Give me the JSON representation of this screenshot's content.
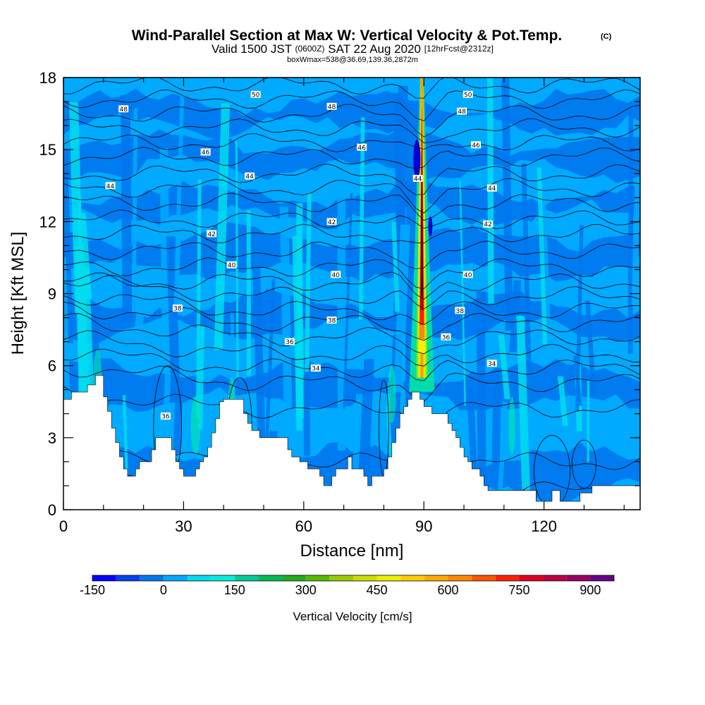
{
  "chart_data": {
    "type": "heatmap",
    "title": "Wind-Parallel Section at Max W: Vertical Velocity & Pot.Temp.",
    "title_mark": "(C)",
    "subtitle": {
      "part1": "Valid 1500 JST",
      "part2": "(0600Z)",
      "part3": "SAT 22 Aug 2020",
      "part4": "[12hrFcst@2312z]"
    },
    "subtitle2": "boxWmax=538@36.69,139.36,2872m",
    "xlabel": "Distance [nm]",
    "ylabel": "Height [Kft MSL]",
    "xlim": [
      0,
      144
    ],
    "ylim": [
      0,
      18
    ],
    "x_ticks": [
      "0",
      "30",
      "60",
      "90",
      "120"
    ],
    "y_ticks": [
      "0",
      "3",
      "6",
      "9",
      "12",
      "15",
      "18"
    ],
    "colorbar": {
      "label": "Vertical Velocity [cm/s]",
      "ticks": [
        "-150",
        "0",
        "150",
        "300",
        "450",
        "600",
        "750",
        "900"
      ],
      "levels": [
        -150,
        -100,
        -50,
        0,
        50,
        100,
        150,
        200,
        250,
        300,
        350,
        400,
        450,
        500,
        550,
        600,
        650,
        700,
        750,
        800,
        850,
        900,
        950
      ],
      "colors": [
        "#0000ff",
        "#0044ee",
        "#0077ee",
        "#00aaff",
        "#00ddee",
        "#00eedd",
        "#00cc99",
        "#00bb55",
        "#22aa22",
        "#55bb00",
        "#99cc00",
        "#ccdd00",
        "#eeee00",
        "#ffcc00",
        "#ffaa00",
        "#ff8800",
        "#ff5500",
        "#ff2200",
        "#dd0022",
        "#bb0044",
        "#990066",
        "#660088"
      ]
    },
    "background_colors": {
      "weak_down": "#0077ee",
      "near_zero": "#00aaff",
      "weak_up": "#00ddee",
      "strong_down": "#0000dd",
      "terrain": "#ffffff"
    },
    "updraft_core": {
      "x": 89.5,
      "y_range": [
        5.5,
        18
      ],
      "peak_colors": [
        "#ffee00",
        "#ff8800",
        "#ff2200",
        "#aa0000",
        "#000000"
      ]
    },
    "terrain": [
      [
        0,
        4.6
      ],
      [
        2,
        4.6
      ],
      [
        2,
        4.9
      ],
      [
        6,
        4.9
      ],
      [
        6,
        5.2
      ],
      [
        8,
        5.2
      ],
      [
        8,
        5.6
      ],
      [
        10,
        5.6
      ],
      [
        10,
        4.7
      ],
      [
        11,
        4.7
      ],
      [
        11,
        4.1
      ],
      [
        12,
        4.1
      ],
      [
        12,
        3.4
      ],
      [
        13,
        3.4
      ],
      [
        13,
        2.8
      ],
      [
        14,
        2.8
      ],
      [
        14,
        2.2
      ],
      [
        15,
        2.2
      ],
      [
        15,
        1.7
      ],
      [
        16,
        1.7
      ],
      [
        16,
        1.4
      ],
      [
        18,
        1.4
      ],
      [
        18,
        1.7
      ],
      [
        19,
        1.7
      ],
      [
        19,
        2.0
      ],
      [
        22,
        2.0
      ],
      [
        22,
        2.5
      ],
      [
        23,
        2.5
      ],
      [
        23,
        3.0
      ],
      [
        27,
        3.0
      ],
      [
        27,
        2.5
      ],
      [
        28,
        2.5
      ],
      [
        28,
        2.0
      ],
      [
        29,
        2.0
      ],
      [
        29,
        1.7
      ],
      [
        30,
        1.7
      ],
      [
        30,
        1.4
      ],
      [
        33,
        1.4
      ],
      [
        33,
        1.7
      ],
      [
        34,
        1.7
      ],
      [
        34,
        2.0
      ],
      [
        35,
        2.0
      ],
      [
        35,
        2.2
      ],
      [
        36,
        2.2
      ],
      [
        36,
        2.6
      ],
      [
        37,
        2.6
      ],
      [
        37,
        3.2
      ],
      [
        38,
        3.2
      ],
      [
        38,
        3.8
      ],
      [
        39,
        3.8
      ],
      [
        39,
        4.5
      ],
      [
        40,
        4.5
      ],
      [
        40,
        4.6
      ],
      [
        45,
        4.6
      ],
      [
        45,
        4.0
      ],
      [
        46,
        4.0
      ],
      [
        46,
        3.6
      ],
      [
        47,
        3.6
      ],
      [
        47,
        3.3
      ],
      [
        49,
        3.3
      ],
      [
        49,
        3.0
      ],
      [
        56,
        3.0
      ],
      [
        56,
        2.5
      ],
      [
        57,
        2.5
      ],
      [
        57,
        2.2
      ],
      [
        59,
        2.2
      ],
      [
        59,
        2.0
      ],
      [
        61,
        2.0
      ],
      [
        61,
        1.7
      ],
      [
        64,
        1.7
      ],
      [
        64,
        1.4
      ],
      [
        65,
        1.4
      ],
      [
        65,
        1.0
      ],
      [
        67,
        1.0
      ],
      [
        67,
        1.4
      ],
      [
        68,
        1.4
      ],
      [
        68,
        1.7
      ],
      [
        71,
        1.7
      ],
      [
        71,
        2.2
      ],
      [
        72,
        2.2
      ],
      [
        72,
        1.7
      ],
      [
        75,
        1.7
      ],
      [
        75,
        1.4
      ],
      [
        76,
        1.4
      ],
      [
        76,
        1.0
      ],
      [
        77,
        1.0
      ],
      [
        77,
        1.4
      ],
      [
        80,
        1.4
      ],
      [
        80,
        1.7
      ],
      [
        81,
        1.7
      ],
      [
        81,
        2.2
      ],
      [
        82,
        2.2
      ],
      [
        82,
        2.8
      ],
      [
        83,
        2.8
      ],
      [
        83,
        3.4
      ],
      [
        84,
        3.4
      ],
      [
        84,
        4.0
      ],
      [
        85,
        4.0
      ],
      [
        85,
        4.3
      ],
      [
        86,
        4.3
      ],
      [
        86,
        4.6
      ],
      [
        87,
        4.6
      ],
      [
        87,
        4.9
      ],
      [
        89,
        4.9
      ],
      [
        89,
        4.6
      ],
      [
        90,
        4.6
      ],
      [
        90,
        4.3
      ],
      [
        92,
        4.3
      ],
      [
        92,
        4.0
      ],
      [
        96,
        4.0
      ],
      [
        96,
        3.6
      ],
      [
        97,
        3.6
      ],
      [
        97,
        3.3
      ],
      [
        98,
        3.3
      ],
      [
        98,
        3.0
      ],
      [
        99,
        3.0
      ],
      [
        99,
        2.6
      ],
      [
        100,
        2.6
      ],
      [
        100,
        2.2
      ],
      [
        101,
        2.2
      ],
      [
        101,
        2.0
      ],
      [
        102,
        2.0
      ],
      [
        102,
        1.7
      ],
      [
        104,
        1.7
      ],
      [
        104,
        1.4
      ],
      [
        105,
        1.4
      ],
      [
        105,
        1.0
      ],
      [
        106,
        1.0
      ],
      [
        106,
        0.8
      ],
      [
        118,
        0.8
      ],
      [
        118,
        0.35
      ],
      [
        122,
        0.35
      ],
      [
        122,
        0.8
      ],
      [
        124,
        0.8
      ],
      [
        124,
        0.35
      ],
      [
        129,
        0.35
      ],
      [
        129,
        0.7
      ],
      [
        132,
        0.7
      ],
      [
        132,
        1.0
      ],
      [
        144,
        1.0
      ]
    ],
    "theta_labels": [
      {
        "x": 48,
        "y": 17.3,
        "text": "50"
      },
      {
        "x": 101,
        "y": 17.3,
        "text": "50"
      },
      {
        "x": 15,
        "y": 16.7,
        "text": "48"
      },
      {
        "x": 67,
        "y": 16.8,
        "text": "48"
      },
      {
        "x": 99.5,
        "y": 16.6,
        "text": "48"
      },
      {
        "x": 35.5,
        "y": 14.9,
        "text": "46"
      },
      {
        "x": 74.5,
        "y": 15.1,
        "text": "46"
      },
      {
        "x": 103,
        "y": 15.2,
        "text": "46"
      },
      {
        "x": 11.7,
        "y": 13.5,
        "text": "44"
      },
      {
        "x": 46.5,
        "y": 13.9,
        "text": "44"
      },
      {
        "x": 88.5,
        "y": 13.8,
        "text": "44"
      },
      {
        "x": 107,
        "y": 13.4,
        "text": "44"
      },
      {
        "x": 37,
        "y": 11.5,
        "text": "42"
      },
      {
        "x": 67,
        "y": 12.0,
        "text": "42"
      },
      {
        "x": 106,
        "y": 11.9,
        "text": "42"
      },
      {
        "x": 42,
        "y": 10.2,
        "text": "40"
      },
      {
        "x": 68,
        "y": 9.8,
        "text": "40"
      },
      {
        "x": 101,
        "y": 9.8,
        "text": "40"
      },
      {
        "x": 28.5,
        "y": 8.4,
        "text": "38"
      },
      {
        "x": 67,
        "y": 7.9,
        "text": "38"
      },
      {
        "x": 99,
        "y": 8.3,
        "text": "38"
      },
      {
        "x": 56.5,
        "y": 7.0,
        "text": "36"
      },
      {
        "x": 95.5,
        "y": 7.2,
        "text": "36"
      },
      {
        "x": 63,
        "y": 5.9,
        "text": "34"
      },
      {
        "x": 107,
        "y": 6.1,
        "text": "34"
      },
      {
        "x": 25.5,
        "y": 3.9,
        "text": "36"
      }
    ]
  }
}
